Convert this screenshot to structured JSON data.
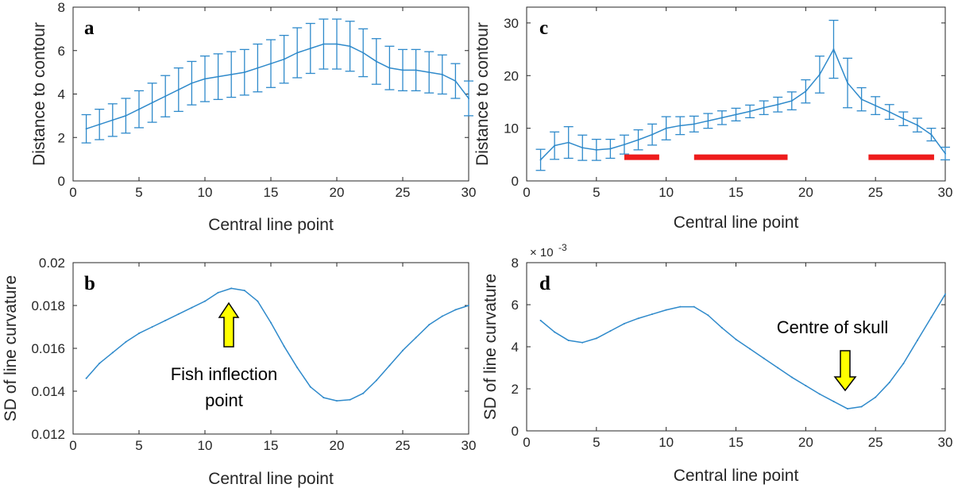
{
  "colors": {
    "line": "#2f8acb",
    "axis": "#262626",
    "range_bar": "#ee1c1c",
    "arrow": "#ffff00"
  },
  "chart_data": [
    {
      "panel": "a",
      "type": "line",
      "error_bars": true,
      "xlabel": "Central line point",
      "ylabel": "Distance to contour",
      "xlim": [
        0,
        30
      ],
      "ylim": [
        0,
        8
      ],
      "xticks": [
        0,
        5,
        10,
        15,
        20,
        25,
        30
      ],
      "yticks": [
        0,
        2,
        4,
        6,
        8
      ],
      "xtick_labels": [
        "0",
        "5",
        "10",
        "15",
        "20",
        "25",
        "30"
      ],
      "ytick_labels": [
        "0",
        "2",
        "4",
        "6",
        "8"
      ],
      "x": [
        1,
        2,
        3,
        4,
        5,
        6,
        7,
        8,
        9,
        10,
        11,
        12,
        13,
        14,
        15,
        16,
        17,
        18,
        19,
        20,
        21,
        22,
        23,
        24,
        25,
        26,
        27,
        28,
        29,
        30
      ],
      "y": [
        2.4,
        2.6,
        2.8,
        3.0,
        3.3,
        3.6,
        3.9,
        4.2,
        4.5,
        4.7,
        4.8,
        4.9,
        5.0,
        5.2,
        5.4,
        5.6,
        5.9,
        6.1,
        6.3,
        6.3,
        6.2,
        5.9,
        5.5,
        5.2,
        5.1,
        5.1,
        5.0,
        4.9,
        4.6,
        3.8
      ],
      "err": [
        0.65,
        0.7,
        0.75,
        0.8,
        0.85,
        0.9,
        0.95,
        1.0,
        1.0,
        1.05,
        1.05,
        1.05,
        1.05,
        1.1,
        1.1,
        1.1,
        1.15,
        1.15,
        1.15,
        1.15,
        1.15,
        1.1,
        1.05,
        1.0,
        0.95,
        0.95,
        0.95,
        0.9,
        0.8,
        0.8
      ]
    },
    {
      "panel": "b",
      "type": "line",
      "xlabel": "Central line point",
      "ylabel": "SD of line curvature",
      "xlim": [
        0,
        30
      ],
      "ylim": [
        0.012,
        0.02
      ],
      "xticks": [
        0,
        5,
        10,
        15,
        20,
        25,
        30
      ],
      "yticks": [
        0.012,
        0.014,
        0.016,
        0.018,
        0.02
      ],
      "xtick_labels": [
        "0",
        "5",
        "10",
        "15",
        "20",
        "25",
        "30"
      ],
      "ytick_labels": [
        "0.012",
        "0.014",
        "0.016",
        "0.018",
        "0.02"
      ],
      "x": [
        1,
        2,
        3,
        4,
        5,
        6,
        7,
        8,
        9,
        10,
        11,
        12,
        13,
        14,
        15,
        16,
        17,
        18,
        19,
        20,
        21,
        22,
        23,
        24,
        25,
        26,
        27,
        28,
        29,
        30
      ],
      "y": [
        0.0146,
        0.0153,
        0.0158,
        0.0163,
        0.0167,
        0.017,
        0.0173,
        0.0176,
        0.0179,
        0.0182,
        0.0186,
        0.0188,
        0.0187,
        0.0182,
        0.0172,
        0.0161,
        0.0151,
        0.0142,
        0.0137,
        0.01355,
        0.0136,
        0.0139,
        0.0145,
        0.0152,
        0.0159,
        0.0165,
        0.0171,
        0.0175,
        0.0178,
        0.018
      ],
      "annotation": {
        "text_lines": [
          "Fish inflection",
          "point"
        ],
        "arrow_at_x": 12,
        "arrow_direction": "up"
      }
    },
    {
      "panel": "c",
      "type": "line",
      "error_bars": true,
      "xlabel": "Central line point",
      "ylabel": "Distance to contour",
      "xlim": [
        0,
        30
      ],
      "ylim": [
        0,
        33
      ],
      "xticks": [
        0,
        5,
        10,
        15,
        20,
        25,
        30
      ],
      "yticks": [
        0,
        10,
        20,
        30
      ],
      "xtick_labels": [
        "0",
        "5",
        "10",
        "15",
        "20",
        "25",
        "30"
      ],
      "ytick_labels": [
        "0",
        "10",
        "20",
        "30"
      ],
      "x": [
        1,
        2,
        3,
        4,
        5,
        6,
        7,
        8,
        9,
        10,
        11,
        12,
        13,
        14,
        15,
        16,
        17,
        18,
        19,
        20,
        21,
        22,
        23,
        24,
        25,
        26,
        27,
        28,
        29,
        30
      ],
      "y": [
        4,
        6.7,
        7.3,
        6.3,
        5.9,
        6.1,
        6.9,
        7.8,
        8.8,
        10.0,
        10.5,
        10.8,
        11.4,
        12.0,
        12.6,
        13.2,
        13.9,
        14.5,
        15.2,
        17.0,
        20.2,
        25.0,
        18.6,
        15.5,
        14.3,
        13.1,
        11.8,
        10.6,
        8.8,
        5.2
      ],
      "err": [
        2.0,
        2.6,
        3.0,
        2.4,
        2.0,
        1.8,
        1.8,
        1.9,
        2.0,
        2.2,
        1.7,
        1.5,
        1.4,
        1.3,
        1.2,
        1.2,
        1.3,
        1.4,
        1.7,
        2.2,
        3.5,
        5.5,
        4.7,
        2.2,
        1.7,
        1.4,
        1.3,
        1.3,
        1.2,
        1.2
      ],
      "range_bars": [
        {
          "from": 7,
          "to": 9.5,
          "y": 4.5
        },
        {
          "from": 12,
          "to": 18.7,
          "y": 4.5
        },
        {
          "from": 24.5,
          "to": 29.2,
          "y": 4.5
        }
      ]
    },
    {
      "panel": "d",
      "type": "line",
      "xlabel": "Central line point",
      "ylabel": "SD of line curvature",
      "xlim": [
        0,
        30
      ],
      "ylim": [
        0,
        8
      ],
      "exponent_label": "× 10",
      "exponent_power": "-3",
      "xticks": [
        0,
        5,
        10,
        15,
        20,
        25,
        30
      ],
      "yticks": [
        0,
        2,
        4,
        6,
        8
      ],
      "xtick_labels": [
        "0",
        "5",
        "10",
        "15",
        "20",
        "25",
        "30"
      ],
      "ytick_labels": [
        "0",
        "2",
        "4",
        "6",
        "8"
      ],
      "x": [
        1,
        2,
        3,
        4,
        5,
        6,
        7,
        8,
        9,
        10,
        11,
        12,
        13,
        14,
        15,
        16,
        17,
        18,
        19,
        20,
        21,
        22,
        23,
        24,
        25,
        26,
        27,
        28,
        29,
        30
      ],
      "y": [
        5.25,
        4.7,
        4.3,
        4.2,
        4.4,
        4.75,
        5.1,
        5.35,
        5.55,
        5.75,
        5.9,
        5.9,
        5.5,
        4.9,
        4.35,
        3.9,
        3.45,
        3.0,
        2.55,
        2.15,
        1.75,
        1.4,
        1.05,
        1.15,
        1.6,
        2.3,
        3.2,
        4.3,
        5.4,
        6.5
      ],
      "annotation": {
        "text_lines": [
          "Centre of skull"
        ],
        "arrow_at_x": 23,
        "arrow_direction": "down"
      }
    }
  ]
}
